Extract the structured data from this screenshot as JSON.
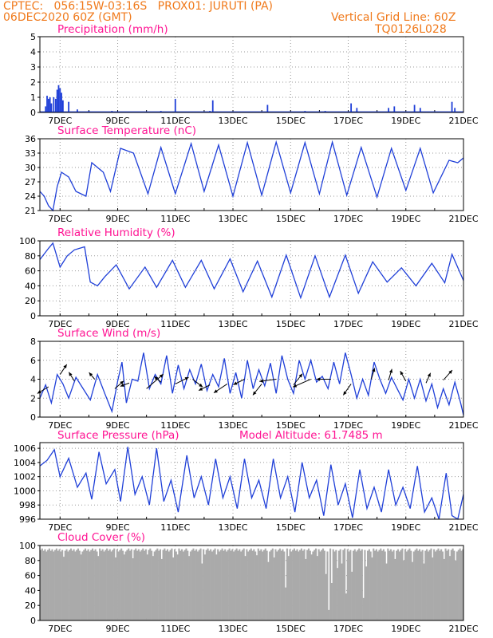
{
  "header": {
    "line1": "CPTEC:   056:15W-03:16S   PROX01: JURUTI (PA)",
    "line2": "06DEC2020 60Z (GMT)",
    "grid_line": "Vertical Grid Line: 60Z",
    "code": "TQ0126L028"
  },
  "colors": {
    "header": "#f07a1c",
    "title": "#ff1493",
    "series": "#1f3fd8",
    "cloud": "#aaaaaa",
    "grid": "#9a9a9a"
  },
  "x_ticks": [
    "7DEC",
    "9DEC",
    "11DEC",
    "13DEC",
    "15DEC",
    "17DEC",
    "19DEC",
    "21DEC"
  ],
  "chart_data": [
    {
      "id": "precip",
      "type": "bar",
      "title": "Precipitation (mm/h)",
      "ylim": [
        0,
        5
      ],
      "yticks": [
        0,
        1,
        2,
        3,
        4,
        5
      ],
      "xrange_days": [
        6.3,
        21.0
      ],
      "x": [
        6.5,
        6.55,
        6.6,
        6.65,
        6.7,
        6.78,
        6.85,
        6.9,
        6.95,
        7.0,
        7.05,
        7.1,
        7.3,
        7.6,
        8.0,
        8.8,
        9.4,
        10.5,
        11.0,
        12.2,
        12.3,
        13.4,
        14.2,
        15.5,
        16.2,
        17.1,
        17.3,
        18.4,
        18.6,
        19.3,
        19.5,
        20.6,
        20.7
      ],
      "values": [
        0.4,
        1.1,
        0.9,
        1.0,
        0.6,
        1.0,
        0.9,
        1.5,
        1.8,
        1.6,
        1.3,
        0.8,
        0.7,
        0.2,
        0.1,
        0.1,
        0.05,
        0.1,
        0.9,
        0.1,
        0.8,
        0.05,
        0.5,
        0.1,
        0.1,
        0.6,
        0.3,
        0.3,
        0.4,
        0.5,
        0.3,
        0.7,
        0.3
      ]
    },
    {
      "id": "temp",
      "type": "line",
      "title": "Surface Temperature (nC)",
      "ylim": [
        21,
        36
      ],
      "yticks": [
        21,
        24,
        27,
        30,
        33,
        36
      ],
      "xrange_days": [
        6.3,
        21.0
      ],
      "x": [
        6.3,
        6.45,
        6.6,
        6.75,
        6.9,
        7.05,
        7.3,
        7.55,
        7.9,
        8.1,
        8.5,
        8.75,
        9.1,
        9.55,
        10.05,
        10.5,
        11.0,
        11.55,
        12.0,
        12.5,
        13.0,
        13.5,
        14.0,
        14.5,
        15.0,
        15.5,
        16.0,
        16.45,
        16.95,
        17.45,
        18.0,
        18.5,
        19.0,
        19.5,
        19.95,
        20.5,
        20.8,
        21.0
      ],
      "values": [
        25,
        24,
        22,
        21,
        26,
        29,
        28,
        25,
        24,
        31,
        29,
        25,
        34,
        33,
        24.5,
        34.2,
        24.5,
        35,
        25,
        34.7,
        24,
        35.2,
        24.2,
        35.3,
        24.7,
        35.2,
        24.5,
        35.3,
        24.2,
        34.2,
        23.8,
        34,
        25.2,
        34,
        24.7,
        31.5,
        31,
        32
      ]
    },
    {
      "id": "rh",
      "type": "line",
      "title": "Relative Humidity (%)",
      "ylim": [
        0,
        100
      ],
      "yticks": [
        0,
        20,
        40,
        60,
        80,
        100
      ],
      "xrange_days": [
        6.3,
        21.0
      ],
      "x": [
        6.3,
        6.6,
        6.75,
        7.0,
        7.25,
        7.5,
        7.85,
        8.05,
        8.3,
        8.55,
        8.95,
        9.4,
        9.95,
        10.35,
        10.9,
        11.35,
        11.9,
        12.35,
        12.9,
        13.35,
        13.85,
        14.35,
        14.85,
        15.35,
        15.85,
        16.35,
        16.9,
        17.35,
        17.85,
        18.35,
        18.85,
        19.35,
        19.9,
        20.35,
        20.6,
        21.0
      ],
      "values": [
        75,
        90,
        97,
        65,
        80,
        88,
        92,
        45,
        40,
        52,
        68,
        36,
        65,
        38,
        74,
        38,
        74,
        36,
        76,
        32,
        73,
        25,
        81,
        24,
        80,
        25,
        81,
        30,
        72,
        45,
        64,
        40,
        70,
        44,
        82,
        47
      ]
    },
    {
      "id": "wind",
      "type": "line",
      "title": "Surface Wind (m/s)",
      "ylim": [
        0,
        8
      ],
      "yticks": [
        0,
        2,
        4,
        6,
        8
      ],
      "xrange_days": [
        6.3,
        21.0
      ],
      "x": [
        6.3,
        6.5,
        6.7,
        6.9,
        7.1,
        7.3,
        7.55,
        7.8,
        8.05,
        8.3,
        8.55,
        8.8,
        9.0,
        9.15,
        9.3,
        9.5,
        9.7,
        9.9,
        10.1,
        10.3,
        10.5,
        10.7,
        10.9,
        11.1,
        11.3,
        11.5,
        11.7,
        11.9,
        12.1,
        12.3,
        12.5,
        12.7,
        12.9,
        13.1,
        13.3,
        13.5,
        13.7,
        13.9,
        14.1,
        14.3,
        14.5,
        14.7,
        14.9,
        15.1,
        15.3,
        15.5,
        15.7,
        15.9,
        16.1,
        16.3,
        16.5,
        16.7,
        16.9,
        17.1,
        17.3,
        17.5,
        17.7,
        17.9,
        18.1,
        18.3,
        18.5,
        18.7,
        18.9,
        19.1,
        19.3,
        19.5,
        19.7,
        19.9,
        20.1,
        20.3,
        20.5,
        20.7,
        20.9,
        21.0
      ],
      "values": [
        2.0,
        3.4,
        1.5,
        4.5,
        3.5,
        2.0,
        4.2,
        3.0,
        1.8,
        4.5,
        2.5,
        0.6,
        3.8,
        5.8,
        1.5,
        4.0,
        3.8,
        6.8,
        3.0,
        4.5,
        3.5,
        6.5,
        2.5,
        5.5,
        3.0,
        5.0,
        3.5,
        5.6,
        2.8,
        4.5,
        3.2,
        6.2,
        2.5,
        4.7,
        2.0,
        6.0,
        3.0,
        5.0,
        3.3,
        5.7,
        2.5,
        6.5,
        4.0,
        2.5,
        6.0,
        4.0,
        6.0,
        3.7,
        4.3,
        3.0,
        5.8,
        3.5,
        6.8,
        4.5,
        2.0,
        4.0,
        2.3,
        5.8,
        4.0,
        2.5,
        4.2,
        3.0,
        1.8,
        4.0,
        2.0,
        4.0,
        1.7,
        3.5,
        1.0,
        3.0,
        1.3,
        3.7,
        1.5,
        0.2
      ],
      "vectors": [
        {
          "x": 6.6,
          "y": 3.2,
          "u": -1.0,
          "v": -0.6
        },
        {
          "x": 7.0,
          "y": 4.5,
          "u": 0.6,
          "v": 0.9
        },
        {
          "x": 7.5,
          "y": 3.8,
          "u": -0.5,
          "v": 0.8
        },
        {
          "x": 8.2,
          "y": 4.0,
          "u": -0.5,
          "v": 0.6
        },
        {
          "x": 8.9,
          "y": 3.0,
          "u": 0.8,
          "v": 0.7
        },
        {
          "x": 9.4,
          "y": 3.6,
          "u": -0.8,
          "v": -0.3
        },
        {
          "x": 10.0,
          "y": 3.0,
          "u": 1.5,
          "v": 1.3
        },
        {
          "x": 10.5,
          "y": 3.7,
          "u": -0.6,
          "v": 0.5
        },
        {
          "x": 11.0,
          "y": 3.5,
          "u": 1.2,
          "v": 0.6
        },
        {
          "x": 11.6,
          "y": 4.0,
          "u": 0.9,
          "v": -0.7
        },
        {
          "x": 12.2,
          "y": 3.4,
          "u": -1.0,
          "v": -0.5
        },
        {
          "x": 12.8,
          "y": 3.5,
          "u": -1.2,
          "v": -0.8
        },
        {
          "x": 13.4,
          "y": 4.0,
          "u": -1.0,
          "v": -0.5
        },
        {
          "x": 14.0,
          "y": 3.5,
          "u": -0.8,
          "v": -1.0
        },
        {
          "x": 14.5,
          "y": 4.0,
          "u": -1.5,
          "v": -0.2
        },
        {
          "x": 15.1,
          "y": 3.4,
          "u": 0.8,
          "v": 1.0
        },
        {
          "x": 15.7,
          "y": 4.0,
          "u": -1.6,
          "v": -0.7
        },
        {
          "x": 16.4,
          "y": 4.0,
          "u": -1.3,
          "v": 0.0
        },
        {
          "x": 17.1,
          "y": 3.5,
          "u": -0.7,
          "v": -1.0
        },
        {
          "x": 17.8,
          "y": 4.0,
          "u": 0.3,
          "v": 1.0
        },
        {
          "x": 18.4,
          "y": 3.9,
          "u": 0.3,
          "v": 1.0
        },
        {
          "x": 19.0,
          "y": 3.8,
          "u": -0.5,
          "v": 0.9
        },
        {
          "x": 19.7,
          "y": 3.6,
          "u": 0.4,
          "v": 0.9
        },
        {
          "x": 20.3,
          "y": 3.9,
          "u": 0.8,
          "v": 0.9
        }
      ]
    },
    {
      "id": "press",
      "type": "line",
      "title": "Surface Pressure (hPa)",
      "annotation": "Model Altitude: 61.7485 m",
      "ylim": [
        996,
        1006.8
      ],
      "yticks": [
        996,
        998,
        1000,
        1002,
        1004,
        1006
      ],
      "xrange_days": [
        6.3,
        21.0
      ],
      "x": [
        6.3,
        6.55,
        6.8,
        7.0,
        7.3,
        7.6,
        7.9,
        8.1,
        8.35,
        8.6,
        8.9,
        9.1,
        9.35,
        9.6,
        9.85,
        10.1,
        10.35,
        10.6,
        10.85,
        11.1,
        11.4,
        11.65,
        11.9,
        12.15,
        12.4,
        12.65,
        12.9,
        13.15,
        13.4,
        13.65,
        13.9,
        14.15,
        14.4,
        14.65,
        14.9,
        15.15,
        15.4,
        15.65,
        15.9,
        16.15,
        16.4,
        16.65,
        16.9,
        17.15,
        17.4,
        17.65,
        17.9,
        18.15,
        18.4,
        18.65,
        18.9,
        19.15,
        19.4,
        19.65,
        19.9,
        20.15,
        20.4,
        20.6,
        20.8,
        21.0
      ],
      "values": [
        1003.5,
        1004.3,
        1005.8,
        1002.0,
        1004.6,
        1000.5,
        1002.5,
        998.8,
        1005.5,
        1001.0,
        1003.0,
        998.5,
        1006.2,
        999.5,
        1002.0,
        998.0,
        1006.0,
        998.5,
        1001.5,
        997.0,
        1005.0,
        999.0,
        1002.0,
        998.0,
        1004.5,
        999.0,
        1002.0,
        997.5,
        1004.5,
        999.0,
        1001.5,
        997.5,
        1004.5,
        999.0,
        1002.0,
        997.0,
        1004.0,
        999.0,
        1001.5,
        996.5,
        1003.7,
        998.0,
        1001.0,
        996.2,
        1003.0,
        997.5,
        1000.5,
        997.0,
        1003.0,
        998.0,
        1000.5,
        997.5,
        1003.5,
        997.0,
        999.0,
        996.0,
        1002.5,
        996.5,
        996.0,
        999.5
      ]
    },
    {
      "id": "cloud",
      "type": "bar",
      "title": "Cloud Cover (%)",
      "ylim": [
        0,
        100
      ],
      "yticks": [
        0,
        20,
        40,
        60,
        80,
        100
      ],
      "xrange_days": [
        6.3,
        21.0
      ],
      "typical": 94,
      "dips": [
        {
          "x": 7.1,
          "v": 85
        },
        {
          "x": 7.7,
          "v": 88
        },
        {
          "x": 8.3,
          "v": 86
        },
        {
          "x": 8.9,
          "v": 84
        },
        {
          "x": 9.2,
          "v": 88
        },
        {
          "x": 9.5,
          "v": 83
        },
        {
          "x": 10.0,
          "v": 88
        },
        {
          "x": 10.2,
          "v": 86
        },
        {
          "x": 10.5,
          "v": 82
        },
        {
          "x": 10.9,
          "v": 84
        },
        {
          "x": 11.05,
          "v": 88
        },
        {
          "x": 11.45,
          "v": 86
        },
        {
          "x": 11.9,
          "v": 76
        },
        {
          "x": 12.0,
          "v": 88
        },
        {
          "x": 12.4,
          "v": 88
        },
        {
          "x": 13.4,
          "v": 86
        },
        {
          "x": 13.8,
          "v": 87
        },
        {
          "x": 14.2,
          "v": 78
        },
        {
          "x": 14.4,
          "v": 84
        },
        {
          "x": 14.8,
          "v": 44
        },
        {
          "x": 14.9,
          "v": 86
        },
        {
          "x": 15.5,
          "v": 82
        },
        {
          "x": 15.7,
          "v": 88
        },
        {
          "x": 15.9,
          "v": 86
        },
        {
          "x": 16.2,
          "v": 62
        },
        {
          "x": 16.3,
          "v": 14
        },
        {
          "x": 16.4,
          "v": 50
        },
        {
          "x": 16.6,
          "v": 70
        },
        {
          "x": 16.75,
          "v": 76
        },
        {
          "x": 16.9,
          "v": 36
        },
        {
          "x": 17.1,
          "v": 65
        },
        {
          "x": 17.5,
          "v": 30
        },
        {
          "x": 17.6,
          "v": 72
        },
        {
          "x": 17.8,
          "v": 84
        },
        {
          "x": 18.3,
          "v": 76
        },
        {
          "x": 18.6,
          "v": 82
        },
        {
          "x": 18.9,
          "v": 80
        },
        {
          "x": 19.2,
          "v": 78
        },
        {
          "x": 19.6,
          "v": 76
        },
        {
          "x": 19.9,
          "v": 84
        },
        {
          "x": 20.3,
          "v": 82
        },
        {
          "x": 20.5,
          "v": 86
        },
        {
          "x": 20.7,
          "v": 80
        }
      ]
    }
  ]
}
